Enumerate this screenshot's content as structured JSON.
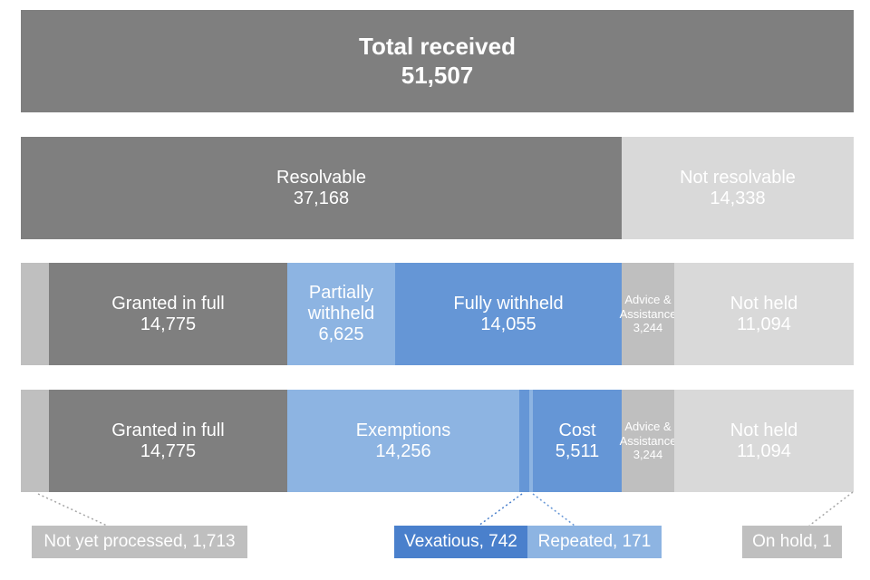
{
  "colors": {
    "dark_grey": "#7f7f7f",
    "mid_grey": "#bfbfbf",
    "light_grey": "#d9d9d9",
    "light_blue": "#8db4e2",
    "mid_blue": "#6596d6",
    "dark_blue": "#4a80cc"
  },
  "total": {
    "label": "Total received",
    "value": "51,507"
  },
  "row2": {
    "resolvable": {
      "label": "Resolvable",
      "value": "37,168"
    },
    "not_resolvable": {
      "label": "Not resolvable",
      "value": "14,338"
    }
  },
  "row3": {
    "granted": {
      "label": "Granted in full",
      "value": "14,775"
    },
    "partial": {
      "label_line1": "Partially",
      "label_line2": "withheld",
      "value": "6,625"
    },
    "fully": {
      "label": "Fully withheld",
      "value": "14,055"
    },
    "advice": {
      "label_line1": "Advice &",
      "label_line2": "Assistance",
      "value": "3,244"
    },
    "not_held": {
      "label": "Not held",
      "value": "11,094"
    }
  },
  "row4": {
    "granted": {
      "label": "Granted in full",
      "value": "14,775"
    },
    "exemptions": {
      "label": "Exemptions",
      "value": "14,256"
    },
    "cost": {
      "label": "Cost",
      "value": "5,511"
    },
    "advice": {
      "label_line1": "Advice &",
      "label_line2": "Assistance",
      "value": "3,244"
    },
    "not_held": {
      "label": "Not held",
      "value": "11,094"
    }
  },
  "callouts": {
    "not_processed": "Not yet processed, 1,713",
    "vexatious": "Vexatious, 742",
    "repeated": "Repeated, 171",
    "on_hold": "On hold, 1"
  }
}
